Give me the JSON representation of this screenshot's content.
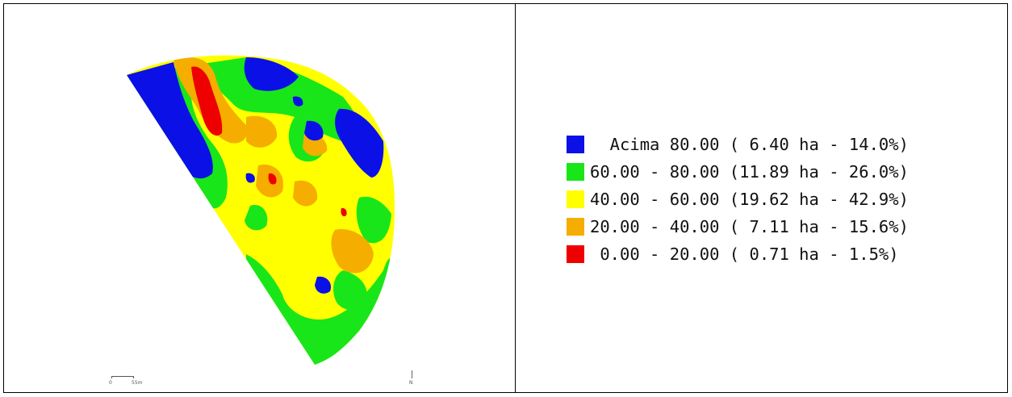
{
  "map": {
    "scale_bar": {
      "start_label": "0",
      "end_label": "55m"
    },
    "north_label": "N",
    "classes_colors": {
      "acima_80": "#0000ff",
      "c60_80": "#00e000",
      "c40_60": "#ffff00",
      "c20_40": "#f5b000",
      "c0_20": "#ee0000"
    }
  },
  "legend": {
    "items": [
      {
        "color": "#0a10e6",
        "label": "  Acima 80.00 ( 6.40 ha - 14.0%)"
      },
      {
        "color": "#19e619",
        "label": "60.00 - 80.00 (11.89 ha - 26.0%)"
      },
      {
        "color": "#ffff00",
        "label": "40.00 - 60.00 (19.62 ha - 42.9%)"
      },
      {
        "color": "#f5ad00",
        "label": "20.00 - 40.00 ( 7.11 ha - 15.6%)"
      },
      {
        "color": "#ee0000",
        "label": " 0.00 - 20.00 ( 0.71 ha - 1.5%)"
      }
    ]
  }
}
